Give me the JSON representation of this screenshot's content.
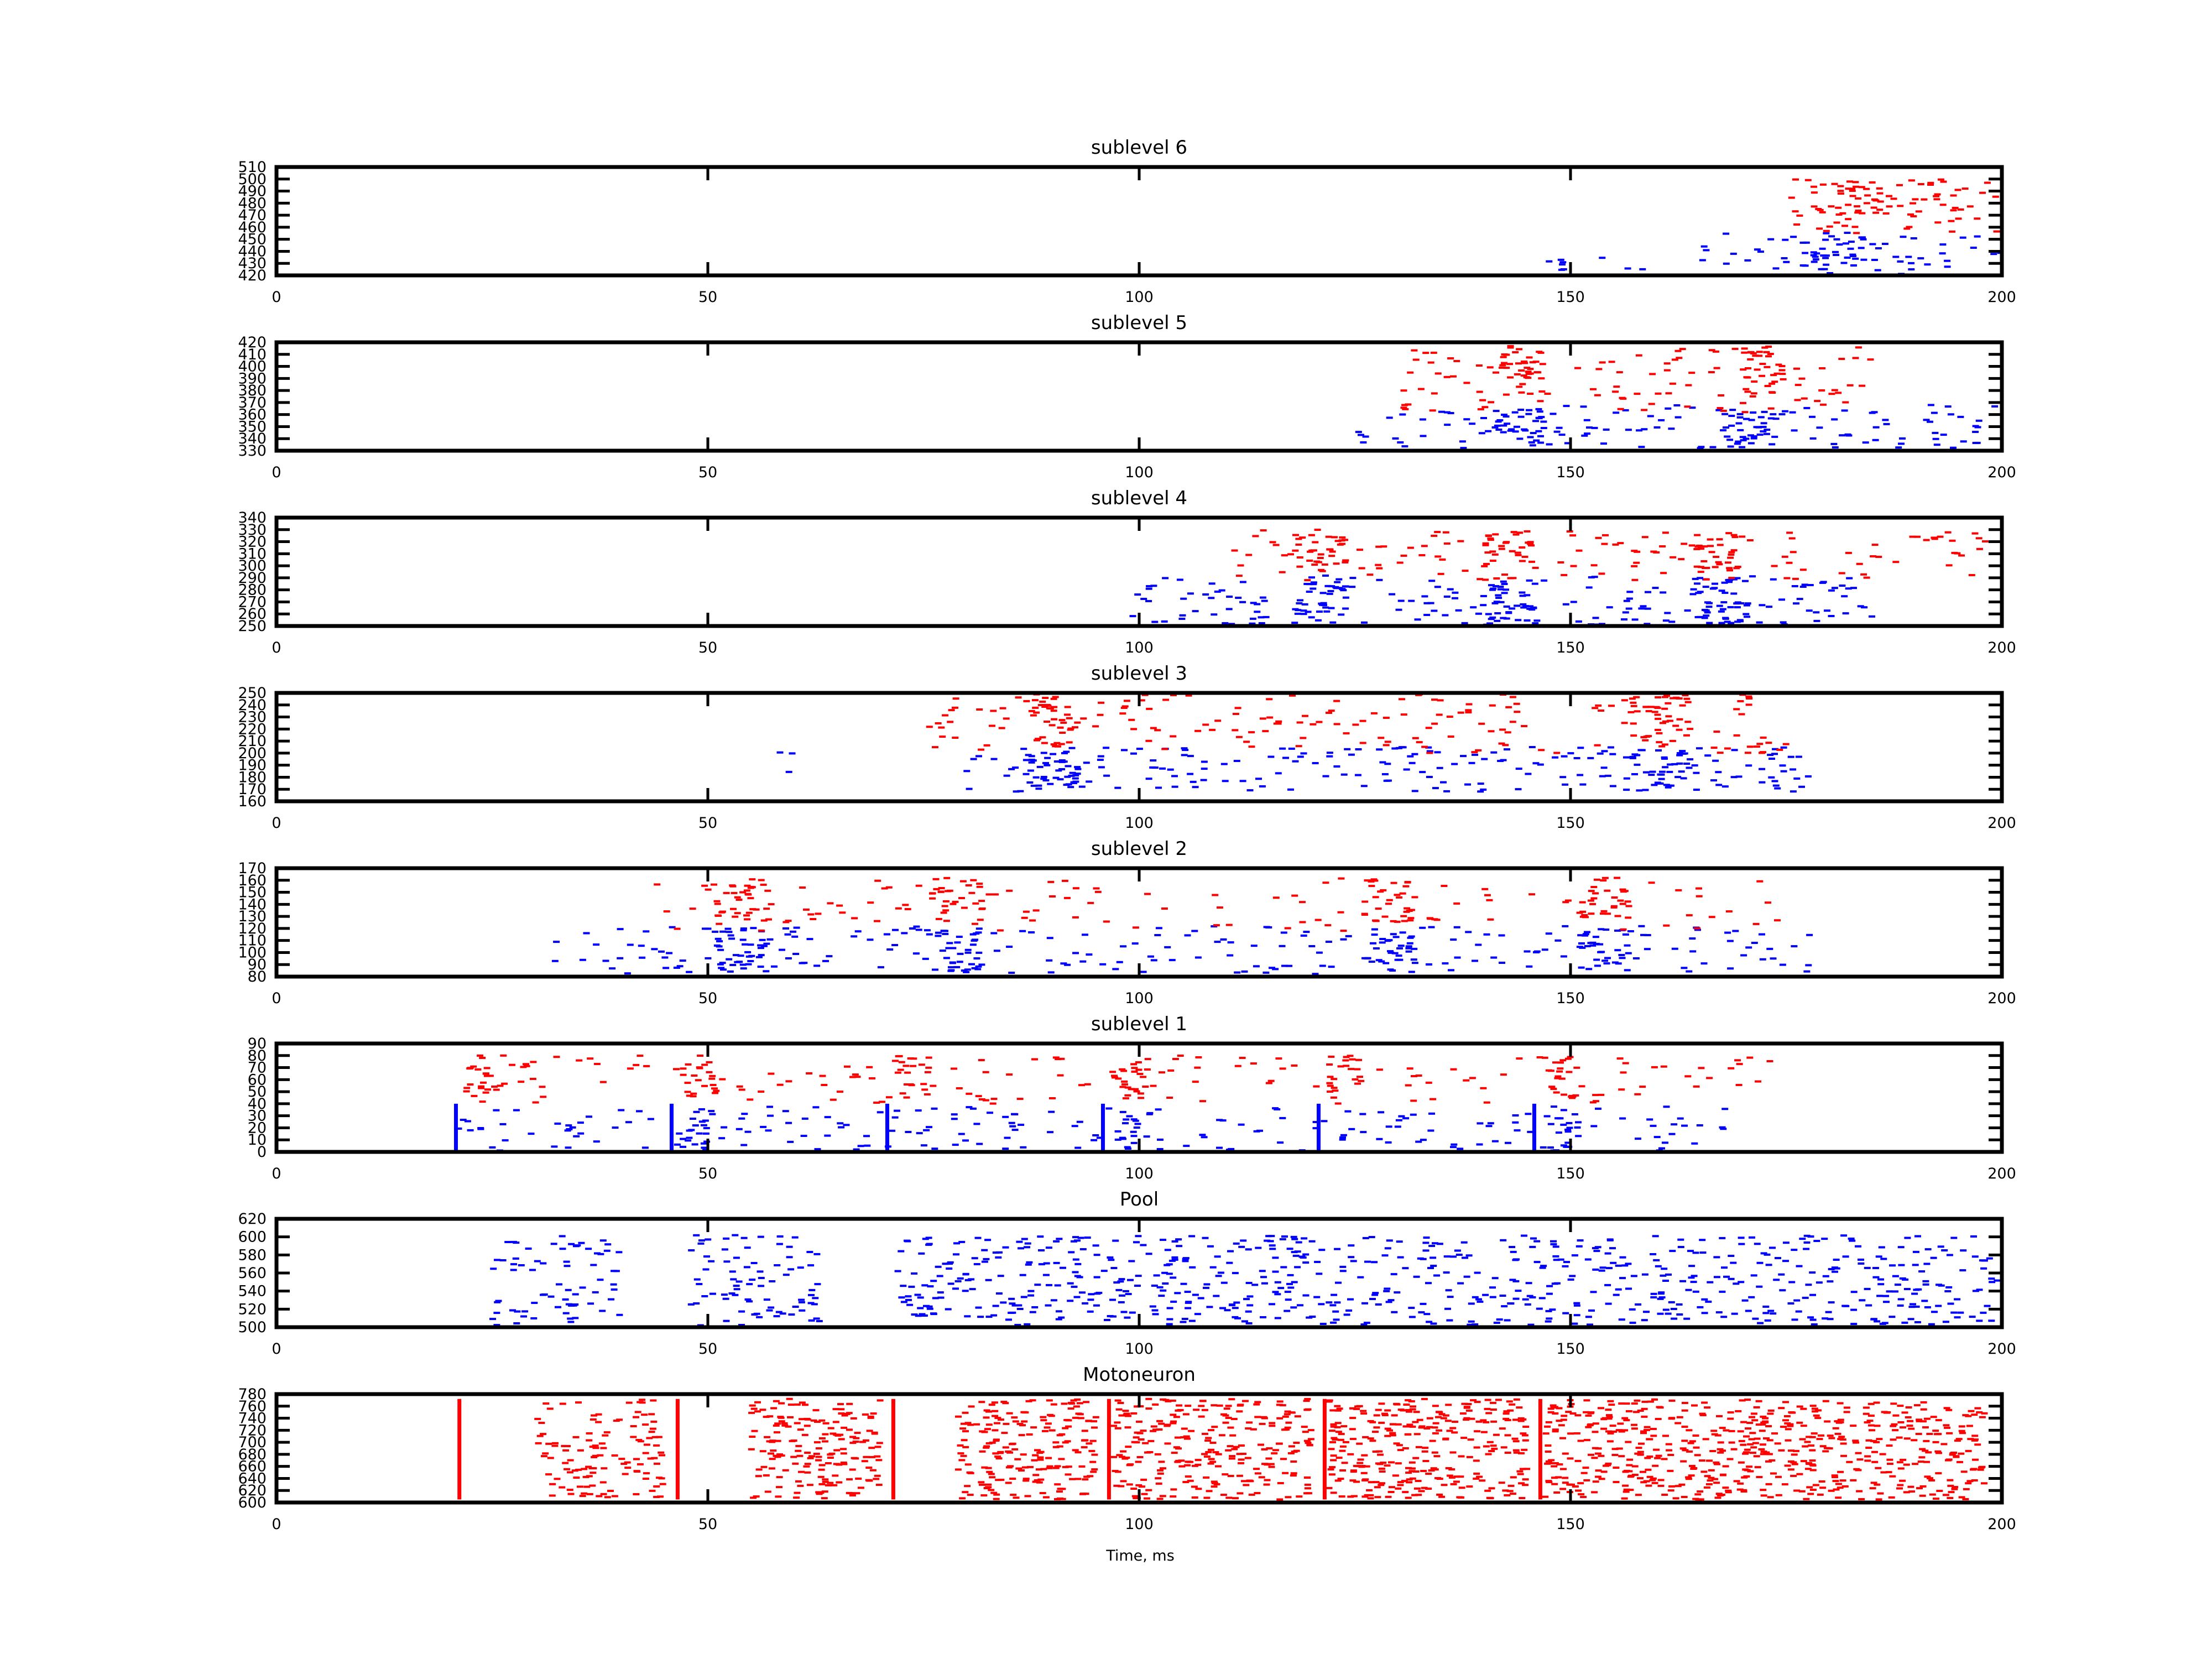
{
  "figure": {
    "xlabel": "Time, ms"
  },
  "colors": {
    "excitatory": "#ff0000",
    "inhibitory": "#0000ff",
    "axis": "#000000",
    "background": "#ffffff"
  },
  "chart_data": [
    {
      "type": "scatter",
      "title": "sublevel 6",
      "xlim": [
        0,
        200
      ],
      "ylim": [
        420,
        510
      ],
      "xticks": [
        0,
        50,
        100,
        150,
        200
      ],
      "yticks": [
        420,
        430,
        440,
        450,
        460,
        470,
        480,
        490,
        500,
        510
      ],
      "series": [
        {
          "color": "inhibitory",
          "clusters": [
            {
              "x0": 147,
              "x1": 150,
              "y0": 421,
              "y1": 433,
              "n": 6
            },
            {
              "x0": 152,
              "x1": 160,
              "y0": 422,
              "y1": 438,
              "n": 3
            },
            {
              "x0": 165,
              "x1": 200,
              "y0": 421,
              "y1": 457,
              "n": 50
            },
            {
              "x0": 176,
              "x1": 186,
              "y0": 425,
              "y1": 450,
              "n": 30
            }
          ]
        },
        {
          "color": "excitatory",
          "clusters": [
            {
              "x0": 175,
              "x1": 200,
              "y0": 455,
              "y1": 500,
              "n": 70
            },
            {
              "x0": 178,
              "x1": 186,
              "y0": 470,
              "y1": 498,
              "n": 25
            }
          ]
        }
      ]
    },
    {
      "type": "scatter",
      "title": "sublevel 5",
      "xlim": [
        0,
        200
      ],
      "ylim": [
        330,
        420
      ],
      "xticks": [
        0,
        50,
        100,
        150,
        200
      ],
      "yticks": [
        330,
        340,
        350,
        360,
        370,
        380,
        390,
        400,
        410,
        420
      ],
      "series": [
        {
          "color": "inhibitory",
          "clusters": [
            {
              "x0": 125,
              "x1": 200,
              "y0": 332,
              "y1": 368,
              "n": 120
            },
            {
              "x0": 141,
              "x1": 147,
              "y0": 335,
              "y1": 365,
              "n": 30
            },
            {
              "x0": 168,
              "x1": 174,
              "y0": 335,
              "y1": 365,
              "n": 30
            }
          ]
        },
        {
          "color": "excitatory",
          "clusters": [
            {
              "x0": 130,
              "x1": 185,
              "y0": 362,
              "y1": 418,
              "n": 100
            },
            {
              "x0": 142,
              "x1": 147,
              "y0": 375,
              "y1": 418,
              "n": 35
            },
            {
              "x0": 170,
              "x1": 175,
              "y0": 375,
              "y1": 418,
              "n": 35
            }
          ]
        }
      ]
    },
    {
      "type": "scatter",
      "title": "sublevel 4",
      "xlim": [
        0,
        200
      ],
      "ylim": [
        250,
        340
      ],
      "xticks": [
        0,
        50,
        100,
        150,
        200
      ],
      "yticks": [
        250,
        260,
        270,
        280,
        290,
        300,
        310,
        320,
        330,
        340
      ],
      "series": [
        {
          "color": "inhibitory",
          "clusters": [
            {
              "x0": 98,
              "x1": 185,
              "y0": 251,
              "y1": 292,
              "n": 170
            },
            {
              "x0": 118,
              "x1": 124,
              "y0": 252,
              "y1": 290,
              "n": 35
            },
            {
              "x0": 140,
              "x1": 146,
              "y0": 252,
              "y1": 290,
              "n": 35
            },
            {
              "x0": 164,
              "x1": 170,
              "y0": 252,
              "y1": 290,
              "n": 35
            }
          ]
        },
        {
          "color": "excitatory",
          "clusters": [
            {
              "x0": 110,
              "x1": 200,
              "y0": 288,
              "y1": 330,
              "n": 120
            },
            {
              "x0": 118,
              "x1": 124,
              "y0": 295,
              "y1": 330,
              "n": 30
            },
            {
              "x0": 140,
              "x1": 146,
              "y0": 295,
              "y1": 330,
              "n": 30
            },
            {
              "x0": 164,
              "x1": 170,
              "y0": 295,
              "y1": 330,
              "n": 30
            }
          ]
        }
      ]
    },
    {
      "type": "scatter",
      "title": "sublevel 3",
      "xlim": [
        0,
        200
      ],
      "ylim": [
        160,
        250
      ],
      "xticks": [
        0,
        50,
        100,
        150,
        200
      ],
      "yticks": [
        160,
        170,
        180,
        190,
        200,
        210,
        220,
        230,
        240,
        250
      ],
      "series": [
        {
          "color": "inhibitory",
          "clusters": [
            {
              "x0": 58,
              "x1": 62,
              "y0": 175,
              "y1": 205,
              "n": 3
            },
            {
              "x0": 80,
              "x1": 178,
              "y0": 168,
              "y1": 205,
              "n": 200
            },
            {
              "x0": 87,
              "x1": 93,
              "y0": 170,
              "y1": 203,
              "n": 30
            },
            {
              "x0": 157,
              "x1": 164,
              "y0": 170,
              "y1": 203,
              "n": 30
            }
          ]
        },
        {
          "color": "excitatory",
          "clusters": [
            {
              "x0": 75,
              "x1": 175,
              "y0": 200,
              "y1": 250,
              "n": 170
            },
            {
              "x0": 87,
              "x1": 93,
              "y0": 205,
              "y1": 249,
              "n": 35
            },
            {
              "x0": 157,
              "x1": 164,
              "y0": 205,
              "y1": 249,
              "n": 35
            }
          ]
        }
      ]
    },
    {
      "type": "scatter",
      "title": "sublevel 2",
      "xlim": [
        0,
        200
      ],
      "ylim": [
        80,
        170
      ],
      "xticks": [
        0,
        50,
        100,
        150,
        200
      ],
      "yticks": [
        80,
        90,
        100,
        110,
        120,
        130,
        140,
        150,
        160,
        170
      ],
      "series": [
        {
          "color": "inhibitory",
          "clusters": [
            {
              "x0": 32,
              "x1": 178,
              "y0": 82,
              "y1": 122,
              "n": 210
            },
            {
              "x0": 51,
              "x1": 57,
              "y0": 84,
              "y1": 120,
              "n": 30
            },
            {
              "x0": 76,
              "x1": 82,
              "y0": 84,
              "y1": 120,
              "n": 30
            },
            {
              "x0": 126,
              "x1": 132,
              "y0": 84,
              "y1": 120,
              "n": 30
            },
            {
              "x0": 151,
              "x1": 157,
              "y0": 84,
              "y1": 120,
              "n": 30
            }
          ]
        },
        {
          "color": "excitatory",
          "clusters": [
            {
              "x0": 43,
              "x1": 175,
              "y0": 118,
              "y1": 162,
              "n": 110
            },
            {
              "x0": 51,
              "x1": 57,
              "y0": 125,
              "y1": 162,
              "n": 30
            },
            {
              "x0": 76,
              "x1": 82,
              "y0": 125,
              "y1": 162,
              "n": 30
            },
            {
              "x0": 126,
              "x1": 132,
              "y0": 125,
              "y1": 162,
              "n": 30
            },
            {
              "x0": 151,
              "x1": 157,
              "y0": 125,
              "y1": 162,
              "n": 30
            }
          ]
        }
      ]
    },
    {
      "type": "scatter",
      "title": "sublevel 1",
      "xlim": [
        0,
        200
      ],
      "ylim": [
        0,
        90
      ],
      "xticks": [
        0,
        50,
        100,
        150,
        200
      ],
      "yticks": [
        0,
        10,
        20,
        30,
        40,
        50,
        60,
        70,
        80,
        90
      ],
      "series": [
        {
          "color": "inhibitory",
          "lines": [
            {
              "x": 20.8,
              "y0": 0,
              "y1": 40
            },
            {
              "x": 45.8,
              "y0": 0,
              "y1": 40
            },
            {
              "x": 70.8,
              "y0": 0,
              "y1": 40
            },
            {
              "x": 95.8,
              "y0": 0,
              "y1": 40
            },
            {
              "x": 120.8,
              "y0": 0,
              "y1": 40
            },
            {
              "x": 145.8,
              "y0": 0,
              "y1": 40
            }
          ],
          "clusters": [
            {
              "x0": 21,
              "x1": 168,
              "y0": 1,
              "y1": 38,
              "n": 210
            },
            {
              "x0": 48,
              "x1": 50,
              "y0": 1,
              "y1": 38,
              "n": 12
            },
            {
              "x0": 98,
              "x1": 100,
              "y0": 1,
              "y1": 38,
              "n": 12
            },
            {
              "x0": 148,
              "x1": 150,
              "y0": 1,
              "y1": 38,
              "n": 12
            }
          ]
        },
        {
          "color": "excitatory",
          "clusters": [
            {
              "x0": 21,
              "x1": 175,
              "y0": 40,
              "y1": 80,
              "n": 150
            },
            {
              "x0": 22,
              "x1": 26,
              "y0": 45,
              "y1": 80,
              "n": 20
            },
            {
              "x0": 47,
              "x1": 51,
              "y0": 45,
              "y1": 80,
              "n": 20
            },
            {
              "x0": 72,
              "x1": 76,
              "y0": 45,
              "y1": 80,
              "n": 20
            },
            {
              "x0": 97,
              "x1": 101,
              "y0": 45,
              "y1": 80,
              "n": 20
            },
            {
              "x0": 122,
              "x1": 126,
              "y0": 45,
              "y1": 80,
              "n": 20
            },
            {
              "x0": 147,
              "x1": 151,
              "y0": 45,
              "y1": 80,
              "n": 20
            }
          ]
        }
      ]
    },
    {
      "type": "scatter",
      "title": "Pool",
      "xlim": [
        0,
        200
      ],
      "ylim": [
        500,
        620
      ],
      "xticks": [
        0,
        50,
        100,
        150,
        200
      ],
      "yticks": [
        500,
        520,
        540,
        560,
        580,
        600,
        620
      ],
      "series": [
        {
          "color": "inhibitory",
          "clusters": [
            {
              "x0": 25,
              "x1": 40,
              "y0": 502,
              "y1": 602,
              "n": 70
            },
            {
              "x0": 48,
              "x1": 63,
              "y0": 502,
              "y1": 602,
              "n": 80
            },
            {
              "x0": 72,
              "x1": 200,
              "y0": 502,
              "y1": 602,
              "n": 700
            }
          ]
        }
      ]
    },
    {
      "type": "scatter",
      "title": "Motoneuron",
      "xlim": [
        0,
        200
      ],
      "ylim": [
        600,
        780
      ],
      "xticks": [
        0,
        50,
        100,
        150,
        200
      ],
      "yticks": [
        600,
        620,
        640,
        660,
        680,
        700,
        720,
        740,
        760,
        780
      ],
      "series": [
        {
          "color": "excitatory",
          "lines": [
            {
              "x": 21.2,
              "y0": 605,
              "y1": 772
            },
            {
              "x": 46.5,
              "y0": 605,
              "y1": 772
            },
            {
              "x": 71.5,
              "y0": 605,
              "y1": 772
            },
            {
              "x": 96.5,
              "y0": 605,
              "y1": 772
            },
            {
              "x": 121.5,
              "y0": 605,
              "y1": 772
            },
            {
              "x": 146.5,
              "y0": 605,
              "y1": 772
            }
          ],
          "clusters": [
            {
              "x0": 30,
              "x1": 45,
              "y0": 605,
              "y1": 772,
              "n": 120
            },
            {
              "x0": 55,
              "x1": 70,
              "y0": 605,
              "y1": 772,
              "n": 180
            },
            {
              "x0": 79,
              "x1": 95,
              "y0": 605,
              "y1": 772,
              "n": 200
            },
            {
              "x0": 97,
              "x1": 120,
              "y0": 605,
              "y1": 772,
              "n": 260
            },
            {
              "x0": 122,
              "x1": 145,
              "y0": 605,
              "y1": 772,
              "n": 300
            },
            {
              "x0": 147,
              "x1": 198,
              "y0": 605,
              "y1": 772,
              "n": 600
            }
          ]
        }
      ]
    }
  ]
}
